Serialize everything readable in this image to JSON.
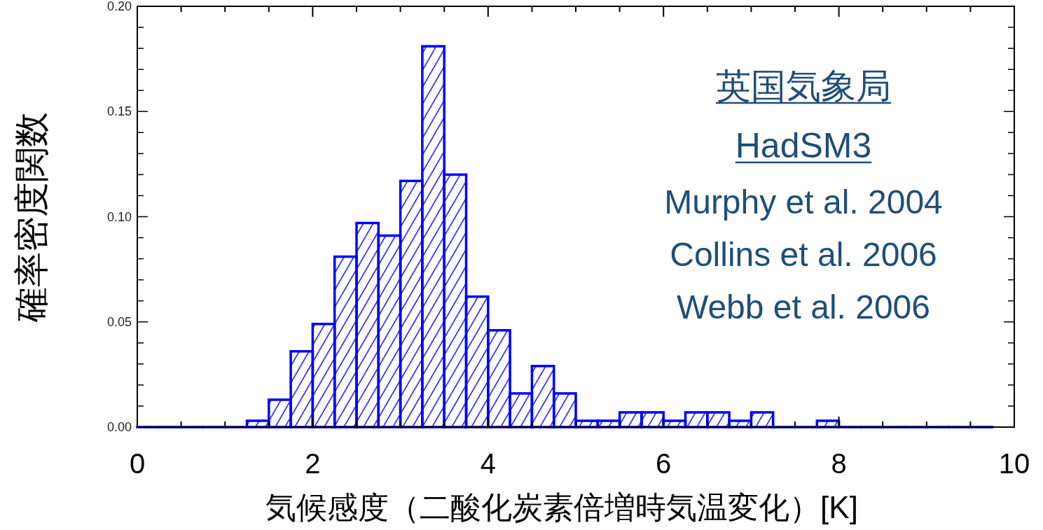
{
  "chart_data": {
    "type": "histogram",
    "title": "英国気象局",
    "subtitle": "HadSM3",
    "annotations": [
      "Murphy et al. 2004",
      "Collins et al. 2006",
      "Webb et al. 2006"
    ],
    "xlabel": "気候感度（二酸化炭素倍増時気温変化）[K]",
    "ylabel": "確率密度関数",
    "bins": [
      0,
      0.25,
      0.5,
      0.75,
      1,
      1.25,
      1.5,
      1.75,
      2,
      2.25,
      2.5,
      2.75,
      3,
      3.25,
      3.5,
      3.75,
      4,
      4.25,
      4.5,
      4.75,
      5,
      5.25,
      5.5,
      5.75,
      6,
      6.25,
      6.5,
      6.75,
      7,
      7.25,
      7.5,
      7.75,
      8,
      8.25,
      8.5,
      8.75,
      9,
      9.25,
      9.5,
      9.75
    ],
    "values": [
      0,
      0,
      0,
      0,
      0,
      0.003,
      0.013,
      0.036,
      0.049,
      0.081,
      0.097,
      0.091,
      0.117,
      0.181,
      0.12,
      0.062,
      0.046,
      0.016,
      0.029,
      0.016,
      0.003,
      0.003,
      0.007,
      0.007,
      0.003,
      0.007,
      0.007,
      0.003,
      0.007,
      0,
      0,
      0.003,
      0,
      0,
      0,
      0,
      0,
      0,
      0
    ],
    "color": "#0000ff",
    "xlim": [
      0,
      10
    ],
    "ylim": [
      0,
      0.2
    ],
    "xticks": [
      0,
      {
        "value": 0.5,
        "label": null
      },
      2,
      {
        "value": 1,
        "label": null
      },
      {
        "value": 1.5,
        "label": null
      },
      {
        "value": 2.5,
        "label": null
      },
      {
        "value": 3,
        "label": null
      },
      {
        "value": 3.5,
        "label": null
      },
      4,
      {
        "value": 4.5,
        "label": null
      },
      {
        "value": 5,
        "label": null
      },
      {
        "value": 5.5,
        "label": null
      },
      6,
      {
        "value": 6.5,
        "label": null
      },
      {
        "value": 7,
        "label": null
      },
      {
        "value": 7.5,
        "label": null
      },
      8,
      {
        "value": 8.5,
        "label": null
      },
      {
        "value": 9,
        "label": null
      },
      {
        "value": 9.5,
        "label": null
      },
      10
    ],
    "yticks": [
      {
        "value": 0,
        "label": "0.00"
      },
      {
        "value": 0.01,
        "label": null
      },
      {
        "value": 0.02,
        "label": null
      },
      {
        "value": 0.03,
        "label": null
      },
      {
        "value": 0.04,
        "label": null
      },
      {
        "value": 0.05,
        "label": "0.05"
      },
      {
        "value": 0.06,
        "label": null
      },
      {
        "value": 0.07,
        "label": null
      },
      {
        "value": 0.08,
        "label": null
      },
      {
        "value": 0.09,
        "label": null
      },
      {
        "value": 0.1,
        "label": "0.10"
      },
      {
        "value": 0.11,
        "label": null
      },
      {
        "value": 0.12,
        "label": null
      },
      {
        "value": 0.13,
        "label": null
      },
      {
        "value": 0.14,
        "label": null
      },
      {
        "value": 0.15,
        "label": "0.15"
      },
      {
        "value": 0.16,
        "label": null
      },
      {
        "value": 0.17,
        "label": null
      },
      {
        "value": 0.18,
        "label": null
      },
      {
        "value": 0.19,
        "label": null
      },
      {
        "value": 0.2,
        "label": "0.20"
      }
    ],
    "grid": false
  }
}
